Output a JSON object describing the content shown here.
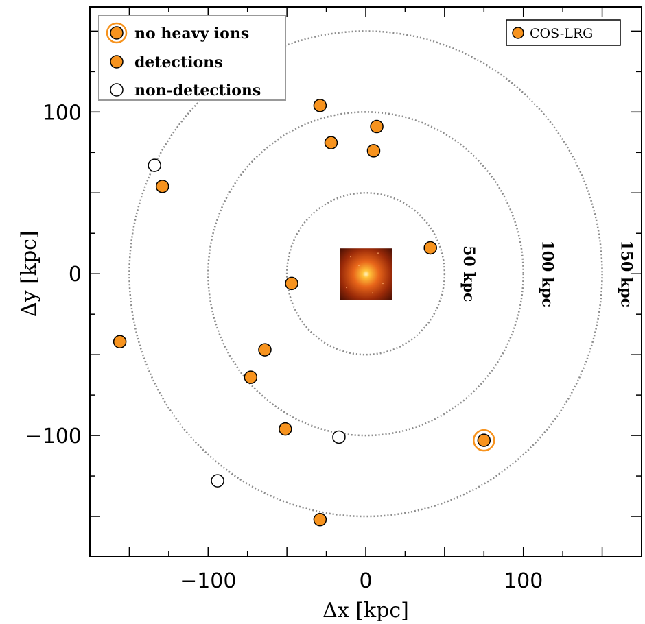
{
  "chart_data": {
    "type": "scatter",
    "xlabel": "Δx  [kpc]",
    "ylabel": "Δy  [kpc]",
    "xlim": [
      -175,
      175
    ],
    "ylim": [
      -175,
      165
    ],
    "xticks": [
      -100,
      0,
      100
    ],
    "yticks": [
      -100,
      0,
      100
    ],
    "x_tick_labels": [
      "−100",
      "0",
      "100"
    ],
    "y_tick_labels": [
      "−100",
      "0",
      "100"
    ],
    "grid": false,
    "legend": {
      "placement": "top-left",
      "entries": [
        "no heavy ions",
        "detections",
        "non-detections"
      ]
    },
    "sample_label": "COS-LRG",
    "sample_label_placement": "top-right",
    "colors": {
      "detection_fill": "#f7931e",
      "highlight_ring": "#f7931e",
      "ring_line": "#8c8c8c"
    },
    "rings": [
      {
        "radius": 50,
        "label": "50 kpc"
      },
      {
        "radius": 100,
        "label": "100 kpc"
      },
      {
        "radius": 150,
        "label": "150 kpc"
      }
    ],
    "central_galaxy_image": {
      "x": 0,
      "y": 0
    },
    "series": [
      {
        "name": "detections",
        "points": [
          {
            "x": -29,
            "y": 104
          },
          {
            "x": 7,
            "y": 91
          },
          {
            "x": -22,
            "y": 81
          },
          {
            "x": 5,
            "y": 76
          },
          {
            "x": -129,
            "y": 54
          },
          {
            "x": 41,
            "y": 16
          },
          {
            "x": -47,
            "y": -6
          },
          {
            "x": -156,
            "y": -42
          },
          {
            "x": -64,
            "y": -47
          },
          {
            "x": -73,
            "y": -64
          },
          {
            "x": -51,
            "y": -96
          },
          {
            "x": 75,
            "y": -103
          },
          {
            "x": -29,
            "y": -152
          }
        ]
      },
      {
        "name": "non-detections",
        "points": [
          {
            "x": -134,
            "y": 67
          },
          {
            "x": -17,
            "y": -101
          },
          {
            "x": -94,
            "y": -128
          }
        ]
      },
      {
        "name": "no heavy ions",
        "points": [
          {
            "x": 75,
            "y": -103
          }
        ]
      }
    ]
  }
}
